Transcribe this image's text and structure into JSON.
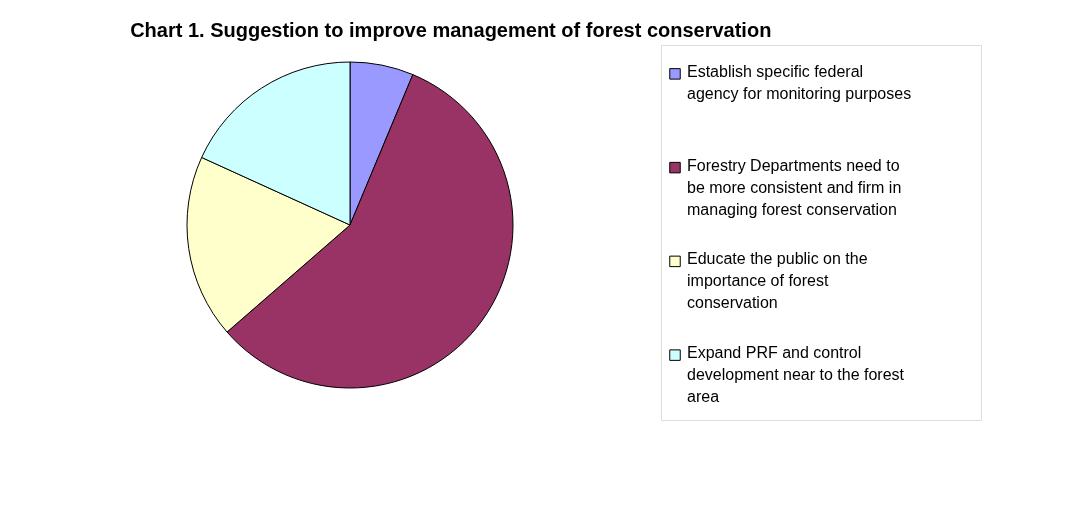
{
  "chart_data": {
    "type": "pie",
    "title": "Chart 1. Suggestion to improve management of forest conservation",
    "categories": [
      "Establish specific federal agency for monitoring purposes",
      "Forestry Departments need to be more consistent and firm in managing forest conservation",
      "Educate the public on the importance of forest conservation",
      "Expand PRF and control development near to the forest area"
    ],
    "values": [
      6.3,
      57.3,
      18.2,
      18.2
    ],
    "colors": [
      "#9999ff",
      "#993366",
      "#ffffcc",
      "#ccffff"
    ],
    "legend": "right"
  }
}
